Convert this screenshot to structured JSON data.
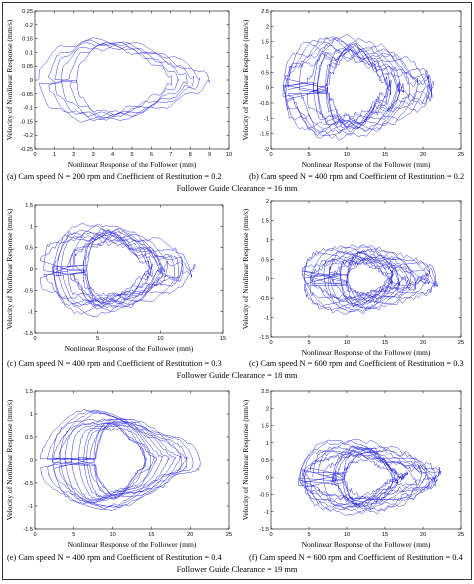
{
  "figure": {
    "clearance_labels": [
      "Follower Guide Clearance = 16 mm",
      "Follower  Guide Clearance = 18 mm",
      "Follower Guide Clearance = 19 mm"
    ]
  },
  "chart_data": [
    {
      "id": "a",
      "type": "line",
      "caption": "(a) Cam speed N = 200 rpm and Coefficient of Restitution = 0.2",
      "xlabel": "Nonlinear Response of the Follower (mm)",
      "ylabel": "Velocity of Nonlinear Response (mm/s)",
      "xlim": [
        0,
        10
      ],
      "ylim": [
        -0.25,
        0.25
      ],
      "xticks": [
        "0",
        "1",
        "2",
        "3",
        "4",
        "5",
        "6",
        "7",
        "8",
        "9",
        "10"
      ],
      "yticks": [
        "0.25",
        "0.2",
        "0.15",
        "0.1",
        "0.05",
        "0",
        "-0.05",
        "-0.1",
        "-0.15",
        "-0.2",
        "-0.25"
      ],
      "trajectory": {
        "x_center": 4.6,
        "x_half_width": 4.4,
        "y_amplitude": 0.17,
        "loops": 6,
        "inner_scale": 0.55,
        "ripple": 0.09,
        "ripple_freq": 70
      },
      "series_color": "#1f1fe0"
    },
    {
      "id": "b",
      "type": "line",
      "caption": "(b) Cam speed N = 400 rpm and Coefficient of Restitution = 0.2",
      "xlabel": "Nonlinear Response of the Follower (mm)",
      "ylabel": "Velocity of Nonlinear Response (mm/s)",
      "xlim": [
        0,
        25
      ],
      "ylim": [
        -2,
        2.5
      ],
      "xticks": [
        "0",
        "5",
        "10",
        "15",
        "20",
        "25"
      ],
      "yticks": [
        "2.5",
        "2",
        "1.5",
        "1",
        "0.5",
        "0",
        "-0.5",
        "-1",
        "-1.5",
        "-2"
      ],
      "trajectory": {
        "x_center": 11.5,
        "x_half_width": 10.8,
        "y_amplitude": 1.75,
        "loops": 14,
        "inner_scale": 0.35,
        "ripple": 0.22,
        "ripple_freq": 40
      },
      "series_color": "#1f1fe0"
    },
    {
      "id": "c",
      "type": "line",
      "caption": "(c) Cam speed N = 400 rpm and Coefficient of Restitution = 0.3",
      "xlabel": "Nonlinear Response of the Follower (mm)",
      "ylabel": "Velocity of Nonlinear Response (mm/s)",
      "xlim": [
        0,
        15
      ],
      "ylim": [
        -1.5,
        1.5
      ],
      "xticks": [
        "0",
        "5",
        "10",
        "15"
      ],
      "yticks": [
        "1.5",
        "1",
        "0.5",
        "0",
        "-0.5",
        "-1",
        "-1.5"
      ],
      "trajectory": {
        "x_center": 6.6,
        "x_half_width": 6.2,
        "y_amplitude": 1.1,
        "loops": 14,
        "inner_scale": 0.4,
        "ripple": 0.2,
        "ripple_freq": 34
      },
      "series_color": "#1f1fe0"
    },
    {
      "id": "d",
      "type": "line",
      "caption": "(c) Cam speed N = 600 rpm and Coefficient of Restitution = 0.3",
      "xlabel": "Nonlinear Response of the Follower (mm)",
      "ylabel": "Velocity of Nonlinear Response (mm/s)",
      "xlim": [
        0,
        25
      ],
      "ylim": [
        -1.5,
        2
      ],
      "xticks": [
        "0",
        "5",
        "10",
        "15",
        "20",
        "25"
      ],
      "yticks": [
        "2",
        "1.5",
        "1",
        "0.5",
        "0",
        "-0.5",
        "-1",
        "-1.5"
      ],
      "trajectory": {
        "x_center": 13.0,
        "x_half_width": 9.6,
        "y_amplitude": 0.85,
        "loops": 16,
        "inner_scale": 0.3,
        "ripple": 0.35,
        "ripple_freq": 18
      },
      "series_color": "#1f1fe0"
    },
    {
      "id": "e",
      "type": "line",
      "caption": "(e) Cam speed N = 400 rpm and Coefficient of Restitution = 0.4",
      "xlabel": "Nonlinear Response of the Follower (mm)",
      "ylabel": "Velocity of Nonlinear Response (mm/s)",
      "xlim": [
        0,
        25
      ],
      "ylim": [
        -1.5,
        1.5
      ],
      "xticks": [
        "0",
        "5",
        "10",
        "15",
        "20",
        "25"
      ],
      "yticks": [
        "1.5",
        "1",
        "0.5",
        "0",
        "-0.5",
        "-1",
        "-1.5"
      ],
      "trajectory": {
        "x_center": 11.0,
        "x_half_width": 10.3,
        "y_amplitude": 1.2,
        "loops": 15,
        "inner_scale": 0.3,
        "ripple": 0.12,
        "ripple_freq": 26
      },
      "series_color": "#1f1fe0"
    },
    {
      "id": "f",
      "type": "line",
      "caption": "(f) Cam speed N = 600 rpm and Coefficient of Restitution = 0.4",
      "xlabel": "Nonlinear Response of the Follower (mm)",
      "ylabel": "Velocity of Nonlinear Response (mm/s)",
      "xlim": [
        0,
        25
      ],
      "ylim": [
        -1.5,
        2.5
      ],
      "xticks": [
        "0",
        "5",
        "10",
        "15",
        "20",
        "25"
      ],
      "yticks": [
        "2.5",
        "2",
        "1.5",
        "1",
        "0.5",
        "0",
        "-0.5",
        "-1",
        "-1.5"
      ],
      "trajectory": {
        "x_center": 13.0,
        "x_half_width": 10.0,
        "y_amplitude": 1.05,
        "loops": 16,
        "inner_scale": 0.3,
        "ripple": 0.3,
        "ripple_freq": 16
      },
      "series_color": "#1f1fe0"
    }
  ]
}
